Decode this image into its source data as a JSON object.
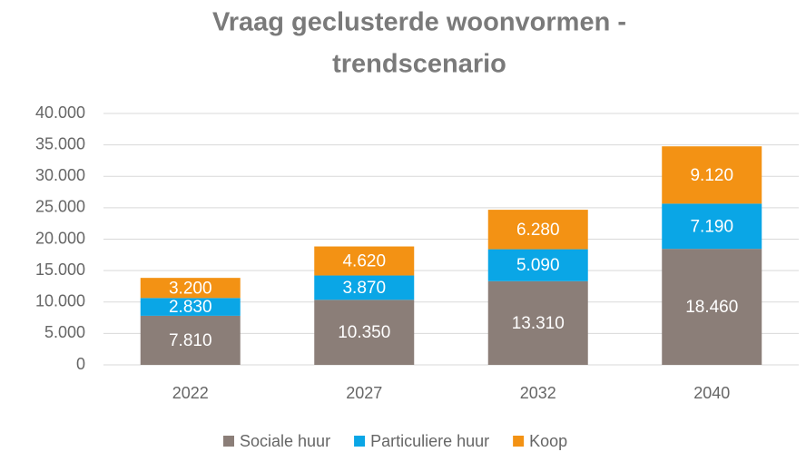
{
  "chart_data": {
    "type": "stacked_bar",
    "title": [
      "Vraag geclusterde woonvormen -",
      "trendscenario"
    ],
    "categories": [
      "2022",
      "2027",
      "2032",
      "2040"
    ],
    "series": [
      {
        "name": "Sociale huur",
        "color": "#8b7e78",
        "values": [
          7810,
          10350,
          13310,
          18460
        ],
        "value_labels": [
          "7.810",
          "10.350",
          "13.310",
          "18.460"
        ]
      },
      {
        "name": "Particuliere huur",
        "color": "#0aa6e6",
        "values": [
          2830,
          3870,
          5090,
          7190
        ],
        "value_labels": [
          "2.830",
          "3.870",
          "5.090",
          "7.190"
        ]
      },
      {
        "name": "Koop",
        "color": "#f39214",
        "values": [
          3200,
          4620,
          6280,
          9120
        ],
        "value_labels": [
          "3.200",
          "4.620",
          "6.280",
          "9.120"
        ]
      }
    ],
    "ylim": [
      0,
      40000
    ],
    "yticks": [
      0,
      {
        "value": 5000,
        "label": "5.000"
      },
      {
        "value": 10000,
        "label": "10.000"
      },
      {
        "value": 15000,
        "label": "15.000"
      },
      {
        "value": 20000,
        "label": "20.000"
      },
      {
        "value": 25000,
        "label": "25.000"
      },
      {
        "value": 30000,
        "label": "30.000"
      },
      {
        "value": 35000,
        "label": "35.000"
      },
      {
        "value": 40000,
        "label": "40.000"
      }
    ],
    "grid": true,
    "legend": "bottom"
  }
}
